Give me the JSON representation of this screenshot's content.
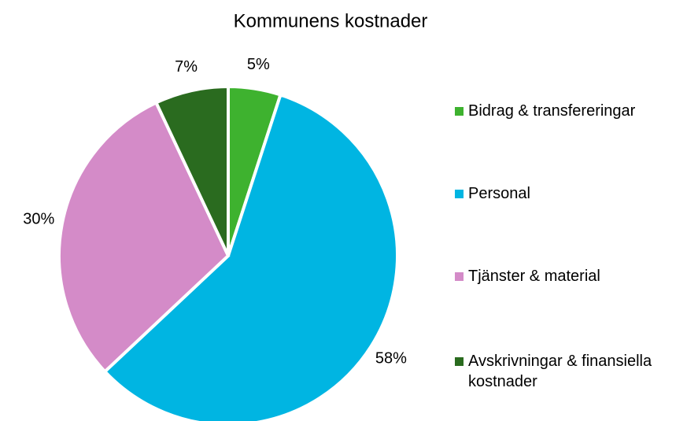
{
  "chart_data": {
    "type": "pie",
    "title": "Kommunens  kostnader",
    "categories": [
      "Bidrag & transfereringar",
      "Personal",
      "Tjänster & material",
      "Avskrivningar & finansiella kostnader"
    ],
    "values": [
      5,
      58,
      30,
      7
    ],
    "value_labels": [
      "5%",
      "58%",
      "30%",
      "7%"
    ],
    "colors": [
      "#3eb22f",
      "#00b5e2",
      "#d48bc8",
      "#2a6b1f"
    ],
    "legend": "right"
  }
}
